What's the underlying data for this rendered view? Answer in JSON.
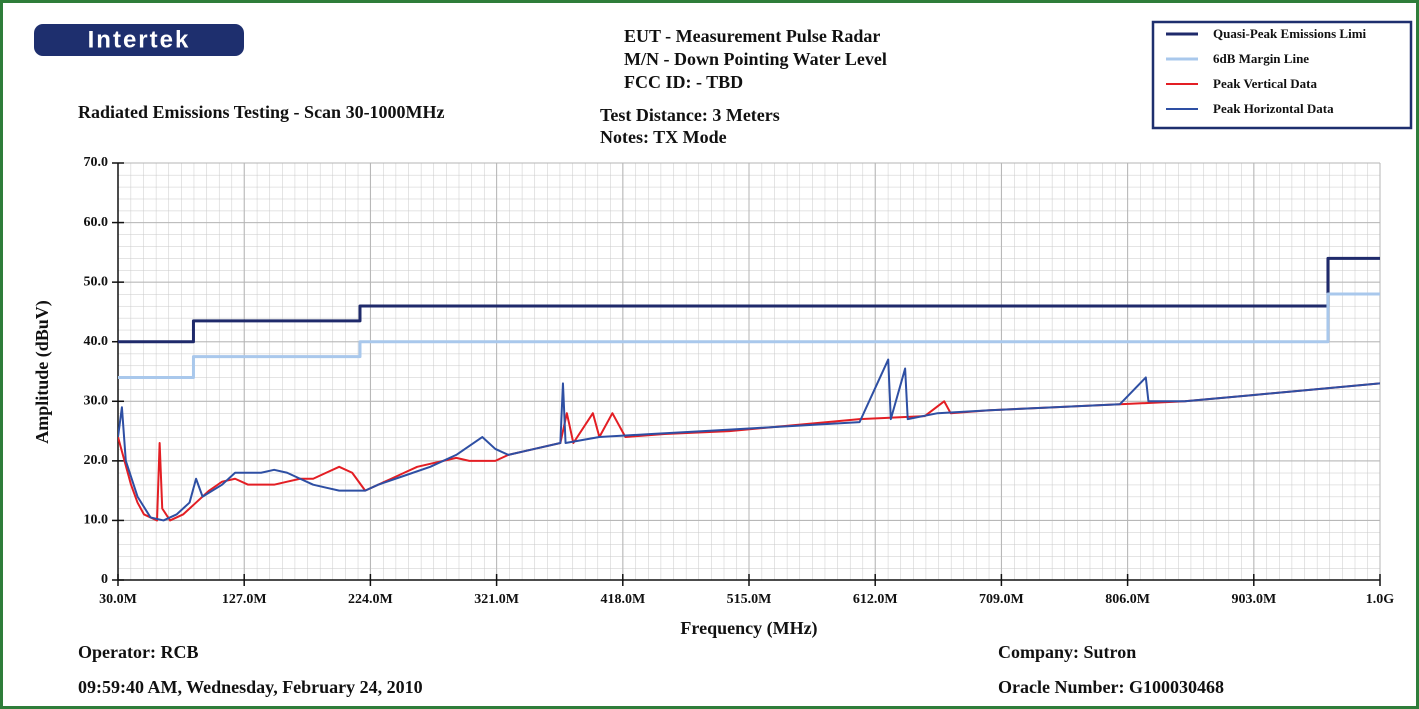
{
  "chart_data": {
    "type": "line",
    "logo": "Intertek",
    "title": "Radiated Emissions Testing - Scan 30-1000MHz",
    "header": [
      "EUT - Measurement Pulse Radar",
      "M/N - Down Pointing Water Level",
      "FCC ID: - TBD"
    ],
    "notes": [
      "Test Distance: 3 Meters",
      "Notes: TX Mode"
    ],
    "xlabel": "Frequency (MHz)",
    "ylabel": "Amplitude (dBuV)",
    "xlim": [
      30,
      1000
    ],
    "ylim": [
      0,
      70
    ],
    "xticks": [
      {
        "value": 30,
        "label": "30.0M"
      },
      {
        "value": 127,
        "label": "127.0M"
      },
      {
        "value": 224,
        "label": "224.0M"
      },
      {
        "value": 321,
        "label": "321.0M"
      },
      {
        "value": 418,
        "label": "418.0M"
      },
      {
        "value": 515,
        "label": "515.0M"
      },
      {
        "value": 612,
        "label": "612.0M"
      },
      {
        "value": 709,
        "label": "709.0M"
      },
      {
        "value": 806,
        "label": "806.0M"
      },
      {
        "value": 903,
        "label": "903.0M"
      },
      {
        "value": 1000,
        "label": "1.0G"
      }
    ],
    "yticks": [
      0,
      {
        "value": 10,
        "label": "10.0"
      },
      {
        "value": 20,
        "label": "20.0"
      },
      {
        "value": 30,
        "label": "30.0"
      },
      {
        "value": 40,
        "label": "40.0"
      },
      {
        "value": 50,
        "label": "50.0"
      },
      {
        "value": 60,
        "label": "60.0"
      },
      {
        "value": 70,
        "label": "70.0"
      }
    ],
    "grid": true,
    "legend": "top-right",
    "series": [
      {
        "name": "Quasi-Peak Emissions Limi",
        "color": "#1f2a6b",
        "width": 3,
        "x": [
          30,
          88,
          88,
          216,
          216,
          960,
          960,
          1000
        ],
        "values": [
          40,
          40,
          43.5,
          43.5,
          46,
          46,
          54,
          54
        ]
      },
      {
        "name": "6dB Margin Line",
        "color": "#a9c8ec",
        "width": 3,
        "x": [
          30,
          88,
          88,
          216,
          216,
          960,
          960,
          1000
        ],
        "values": [
          34,
          34,
          37.5,
          37.5,
          40,
          40,
          48,
          48
        ]
      },
      {
        "name": "Peak Vertical Data",
        "color": "#e31e24",
        "width": 2,
        "x": [
          30,
          35,
          40,
          45,
          50,
          55,
          60,
          62,
          64,
          70,
          80,
          90,
          100,
          110,
          120,
          130,
          140,
          150,
          160,
          170,
          180,
          190,
          200,
          210,
          220,
          230,
          240,
          250,
          260,
          270,
          280,
          290,
          300,
          310,
          320,
          330,
          350,
          370,
          375,
          380,
          395,
          400,
          410,
          420,
          450,
          500,
          550,
          600,
          650,
          665,
          670,
          700,
          750,
          800,
          850,
          900,
          950,
          1000
        ],
        "values": [
          24,
          20,
          16,
          13,
          11,
          10.5,
          10,
          23,
          12,
          10,
          11,
          13,
          15,
          16.5,
          17,
          16,
          16,
          16,
          16.5,
          17,
          17,
          18,
          19,
          18,
          15,
          16,
          17,
          18,
          19,
          19.5,
          20,
          20.5,
          20,
          20,
          20,
          21,
          22,
          23,
          28,
          23,
          28,
          24,
          28,
          24,
          24.5,
          25,
          26,
          27,
          27.5,
          30,
          28,
          28.5,
          29,
          29.5,
          30,
          31,
          32,
          33
        ]
      },
      {
        "name": "Peak Horizontal Data",
        "color": "#2e4fa3",
        "width": 2,
        "x": [
          30,
          33,
          36,
          45,
          55,
          65,
          75,
          85,
          90,
          95,
          110,
          120,
          130,
          140,
          150,
          160,
          170,
          180,
          190,
          200,
          210,
          220,
          230,
          250,
          270,
          290,
          310,
          320,
          330,
          350,
          370,
          372,
          374,
          400,
          440,
          480,
          520,
          560,
          600,
          622,
          624,
          635,
          637,
          660,
          700,
          750,
          800,
          820,
          822,
          850,
          900,
          950,
          1000
        ],
        "values": [
          24,
          29,
          20,
          14,
          10.5,
          10,
          11,
          13,
          17,
          14,
          16,
          18,
          18,
          18,
          18.5,
          18,
          17,
          16,
          15.5,
          15,
          15,
          15,
          16,
          17.5,
          19,
          21,
          24,
          22,
          21,
          22,
          23,
          33,
          23,
          24,
          24.5,
          25,
          25.5,
          26,
          26.5,
          37,
          27,
          35.5,
          27,
          28,
          28.5,
          29,
          29.5,
          34,
          30,
          30,
          31,
          32,
          33
        ]
      }
    ],
    "footer": {
      "operator": "Operator: RCB",
      "timestamp": "09:59:40 AM, Wednesday, February 24, 2010",
      "company": "Company: Sutron",
      "oracle": "Oracle Number: G100030468"
    }
  }
}
